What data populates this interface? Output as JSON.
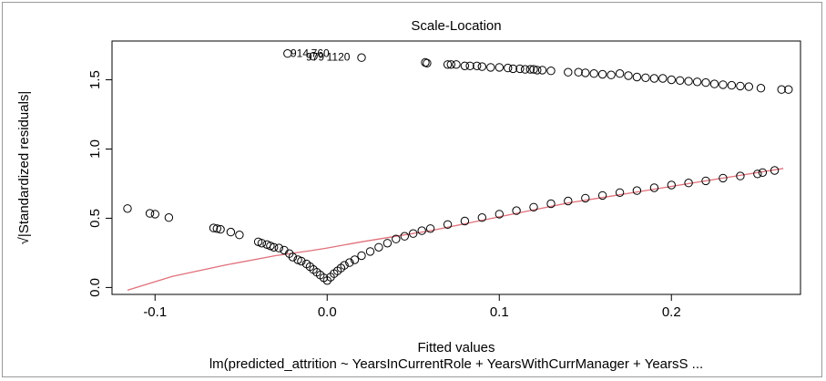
{
  "chart_data": {
    "type": "scatter",
    "title": "Scale-Location",
    "xlabel": "Fitted values",
    "ylabel": "√|Standardized residuals|",
    "subtitle": "lm(predicted_attrition ~ YearsInCurrentRole + YearsWithCurrManager + YearsS ...",
    "xlim": [
      -0.125,
      0.275
    ],
    "ylim": [
      -0.05,
      1.78
    ],
    "xticks": [
      "-0.1",
      "0.0",
      "0.1",
      "0.2"
    ],
    "xtick_values": [
      -0.1,
      0.0,
      0.1,
      0.2
    ],
    "yticks": [
      "0.0",
      "0.5",
      "1.0",
      "1.5"
    ],
    "ytick_values": [
      0.0,
      0.5,
      1.0,
      1.5
    ],
    "grid": false,
    "point_labels": [
      {
        "text": "914",
        "x": -0.016,
        "y": 1.69
      },
      {
        "text": "760",
        "x": -0.004,
        "y": 1.69
      },
      {
        "text": "979",
        "x": -0.007,
        "y": 1.665
      },
      {
        "text": "1120",
        "x": 0.0065,
        "y": 1.665
      }
    ],
    "series": [
      {
        "values_description": "upper band",
        "x": [
          -0.023,
          -0.008,
          0.02,
          0.057,
          0.058,
          0.07,
          0.072,
          0.075,
          0.08,
          0.083,
          0.087,
          0.09,
          0.095,
          0.1,
          0.105,
          0.108,
          0.112,
          0.115,
          0.118,
          0.12,
          0.122,
          0.125,
          0.13,
          0.14,
          0.146,
          0.15,
          0.155,
          0.16,
          0.165,
          0.17,
          0.175,
          0.18,
          0.185,
          0.19,
          0.195,
          0.2,
          0.205,
          0.21,
          0.215,
          0.22,
          0.225,
          0.23,
          0.235,
          0.24,
          0.245,
          0.252,
          0.264,
          0.268
        ],
        "y": [
          1.69,
          1.67,
          1.66,
          1.625,
          1.62,
          1.61,
          1.61,
          1.61,
          1.6,
          1.6,
          1.6,
          1.595,
          1.59,
          1.59,
          1.585,
          1.58,
          1.58,
          1.575,
          1.575,
          1.575,
          1.57,
          1.57,
          1.565,
          1.555,
          1.555,
          1.55,
          1.545,
          1.54,
          1.535,
          1.545,
          1.53,
          1.52,
          1.515,
          1.51,
          1.51,
          1.5,
          1.495,
          1.49,
          1.485,
          1.48,
          1.47,
          1.465,
          1.46,
          1.455,
          1.45,
          1.44,
          1.43,
          1.43
        ]
      },
      {
        "values_description": "lower curve",
        "x": [
          -0.116,
          -0.103,
          -0.1,
          -0.092,
          -0.066,
          -0.064,
          -0.062,
          -0.056,
          -0.051,
          -0.04,
          -0.038,
          -0.035,
          -0.033,
          -0.031,
          -0.028,
          -0.025,
          -0.022,
          -0.02,
          -0.017,
          -0.015,
          -0.012,
          -0.01,
          -0.008,
          -0.006,
          -0.004,
          -0.002,
          0.0,
          0.002,
          0.004,
          0.006,
          0.008,
          0.01,
          0.013,
          0.016,
          0.02,
          0.025,
          0.03,
          0.035,
          0.04,
          0.045,
          0.05,
          0.055,
          0.06,
          0.07,
          0.08,
          0.09,
          0.1,
          0.11,
          0.12,
          0.13,
          0.14,
          0.15,
          0.16,
          0.17,
          0.18,
          0.19,
          0.2,
          0.21,
          0.22,
          0.23,
          0.24,
          0.25,
          0.253,
          0.26
        ],
        "y": [
          0.57,
          0.535,
          0.53,
          0.505,
          0.43,
          0.425,
          0.42,
          0.4,
          0.38,
          0.33,
          0.32,
          0.31,
          0.3,
          0.29,
          0.285,
          0.27,
          0.245,
          0.22,
          0.2,
          0.19,
          0.17,
          0.15,
          0.13,
          0.11,
          0.09,
          0.07,
          0.05,
          0.075,
          0.1,
          0.12,
          0.14,
          0.16,
          0.18,
          0.2,
          0.23,
          0.26,
          0.29,
          0.32,
          0.35,
          0.37,
          0.39,
          0.41,
          0.425,
          0.455,
          0.48,
          0.505,
          0.53,
          0.555,
          0.58,
          0.605,
          0.625,
          0.645,
          0.665,
          0.685,
          0.7,
          0.72,
          0.74,
          0.755,
          0.77,
          0.79,
          0.805,
          0.82,
          0.83,
          0.845
        ]
      }
    ],
    "smoother": {
      "color": "#e0707a",
      "x": [
        -0.116,
        -0.09,
        -0.06,
        -0.03,
        -0.01,
        0.0,
        0.02,
        0.04,
        0.06,
        0.08,
        0.1,
        0.12,
        0.14,
        0.16,
        0.18,
        0.2,
        0.22,
        0.24,
        0.265
      ],
      "y": [
        -0.02,
        0.08,
        0.16,
        0.23,
        0.265,
        0.285,
        0.33,
        0.37,
        0.41,
        0.46,
        0.51,
        0.56,
        0.61,
        0.65,
        0.69,
        0.73,
        0.77,
        0.81,
        0.86
      ]
    }
  }
}
